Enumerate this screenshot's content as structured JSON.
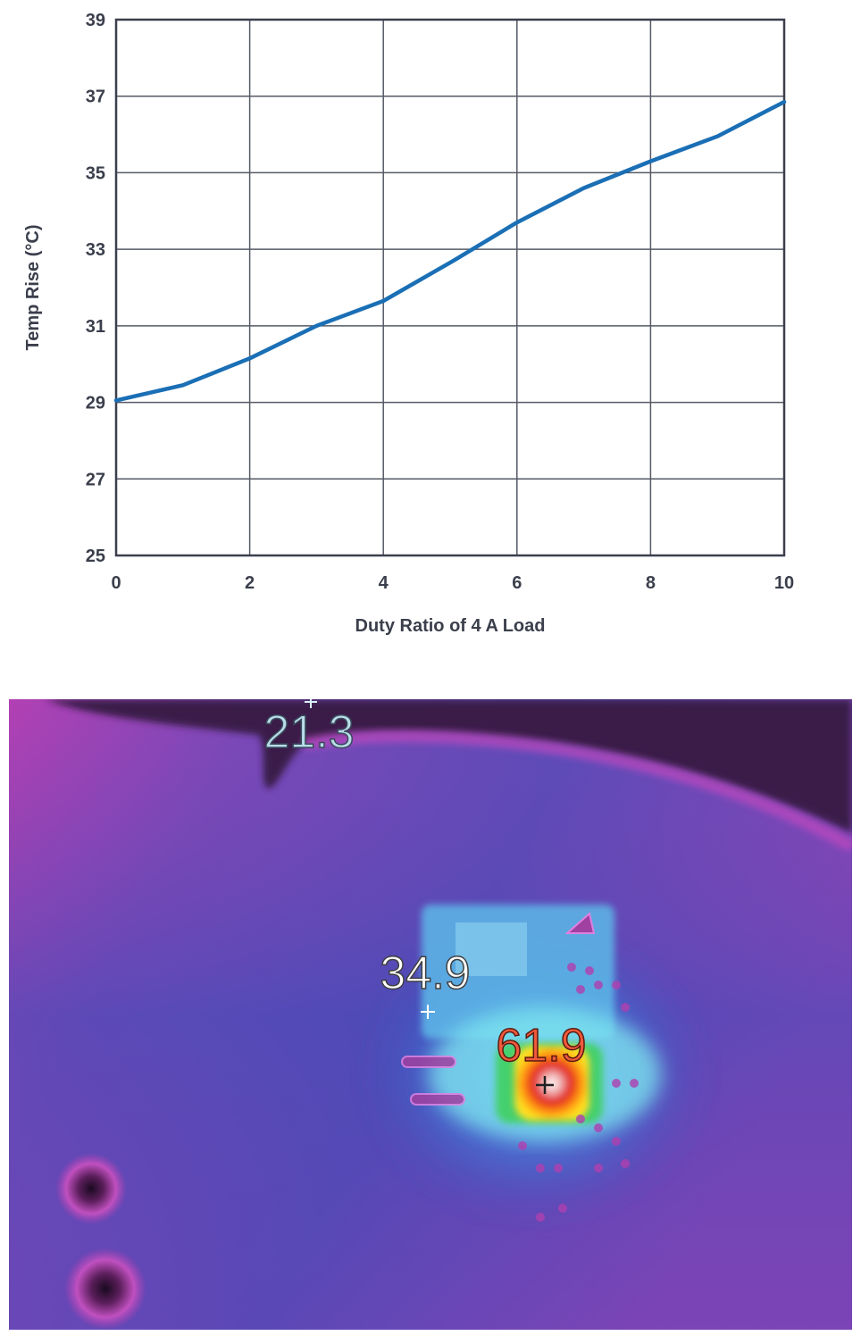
{
  "chart_data": {
    "type": "line",
    "title": "",
    "xlabel": "Duty Ratio of 4 A Load",
    "ylabel": "Temp Rise (°C)",
    "xlim": [
      0,
      10
    ],
    "ylim": [
      25,
      39
    ],
    "x_ticks": [
      "0",
      "2",
      "4",
      "6",
      "8",
      "10"
    ],
    "y_ticks": [
      "39",
      "37",
      "35",
      "33",
      "31",
      "29",
      "27",
      "25"
    ],
    "grid": true,
    "series": [
      {
        "color": "#1a6fb5",
        "x": [
          0,
          1,
          2,
          3,
          4,
          5,
          6,
          7,
          8,
          9,
          10
        ],
        "y": [
          29.05,
          29.45,
          30.15,
          31.0,
          31.65,
          32.65,
          33.7,
          34.6,
          35.3,
          35.95,
          36.85
        ]
      }
    ]
  },
  "thermal_image": {
    "readings": {
      "ambient": "21.3",
      "board": "34.9",
      "hotspot": "61.9"
    },
    "colors": {
      "ambient_label": "#b9dceb",
      "board_label": "#ffffff",
      "hotspot_label": "#f05a3c"
    }
  }
}
